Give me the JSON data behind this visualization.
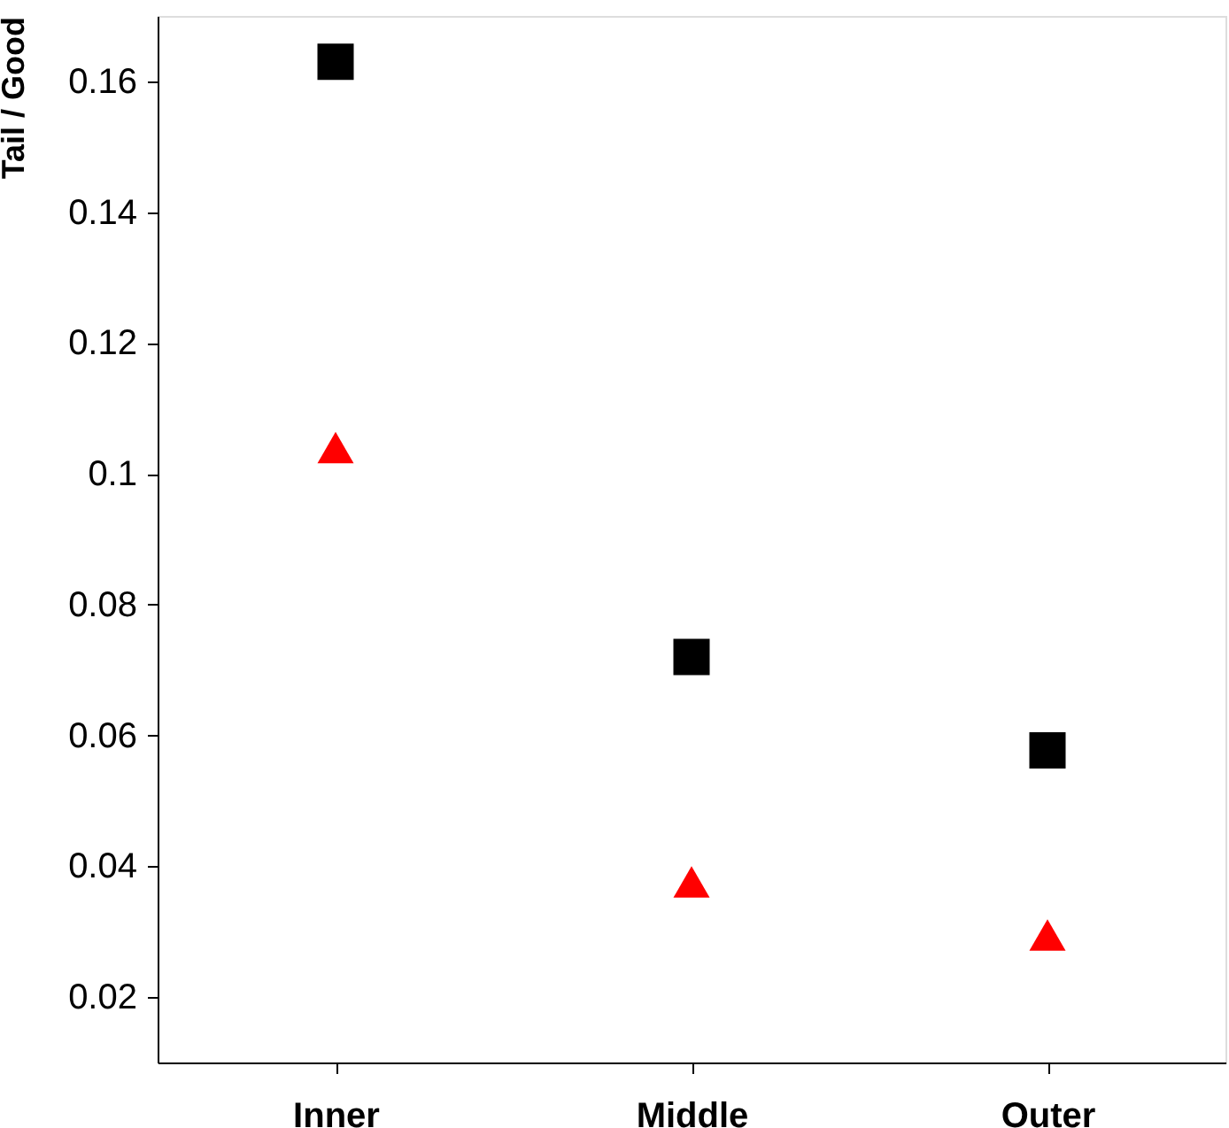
{
  "chart_data": {
    "type": "scatter",
    "ylabel": "Tail / Good",
    "categories": [
      "Inner",
      "Middle",
      "Outer"
    ],
    "series": [
      {
        "color": "#000000",
        "marker": "square",
        "values": [
          0.163,
          0.072,
          0.0577
        ]
      },
      {
        "color": "#ff0000",
        "marker": "triangle",
        "values": [
          0.104,
          0.0376,
          0.0295
        ]
      }
    ],
    "ylim": [
      0.01,
      0.17
    ],
    "yticks": [
      0.02,
      0.04,
      0.06,
      0.08,
      0.1,
      0.12,
      0.14,
      0.16
    ]
  }
}
